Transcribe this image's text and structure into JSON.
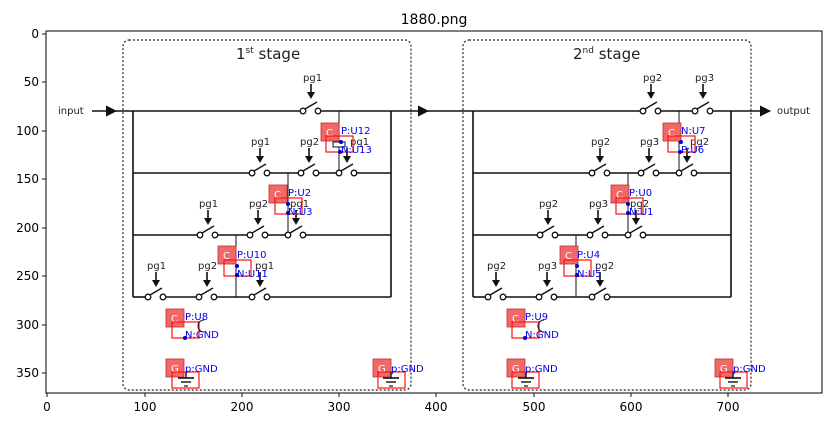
{
  "figure": {
    "title": "1880.png",
    "x_ticks": [
      "0",
      "100",
      "200",
      "300",
      "400",
      "500",
      "600",
      "700"
    ],
    "y_ticks": [
      "0",
      "50",
      "100",
      "150",
      "200",
      "250",
      "300",
      "350"
    ]
  },
  "diagram": {
    "input_label": "input",
    "output_label": "output",
    "stage1": {
      "label_main": "1",
      "label_sup": "st",
      "label_rest": " stage"
    },
    "stage2": {
      "label_main": "2",
      "label_sup": "nd",
      "label_rest": " stage"
    },
    "pg1": "pg1",
    "pg2": "pg2",
    "pg3": "pg3"
  },
  "annotations": {
    "C": "C",
    "G": "G",
    "PU12": "P:U12",
    "NU13": "N:U13",
    "PU2": "P:U2",
    "NU3": "N:U3",
    "PU10": "P:U10",
    "NU11": "N:U11",
    "PU8": "P:U8",
    "NGND": "N:GND",
    "PU9": "P:U9",
    "NU7": "N:U7",
    "PU6": "P:U6",
    "PU0": "P:U0",
    "NU1": "N:U1",
    "PU4": "P:U4",
    "NU5": "N:U5",
    "pGND": "p:GND"
  },
  "colors": {
    "chip": "#f06868",
    "box": "#ff1010",
    "annotation": "#0000ee"
  }
}
